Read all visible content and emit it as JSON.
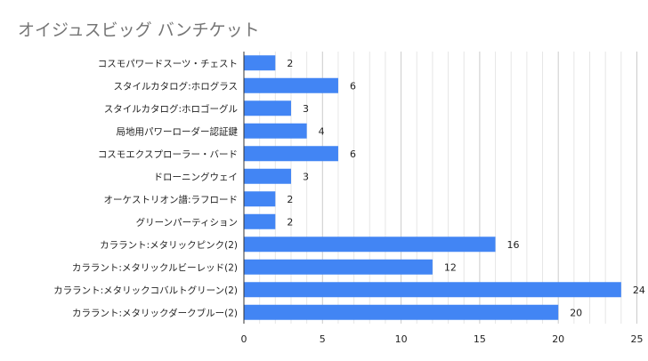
{
  "chart_data": {
    "type": "bar",
    "orientation": "horizontal",
    "title": "オイジュスビッグ バンチケット",
    "xlabel": "",
    "ylabel": "",
    "categories": [
      "コスモパワードスーツ・チェスト",
      "スタイルカタログ:ホログラス",
      "スタイルカタログ:ホロゴーグル",
      "局地用パワーローダー認証鍵",
      "コスモエクスプローラー・バード",
      "ドローニングウェイ",
      "オーケストリオン譜:ラフロード",
      "グリーンパーティション",
      "カララント:メタリックピンク(2)",
      "カララント:メタリックルビーレッド(2)",
      "カララント:メタリックコバルトグリーン(2)",
      "カララント:メタリックダークブルー(2)"
    ],
    "values": [
      2,
      6,
      3,
      4,
      6,
      3,
      2,
      2,
      16,
      12,
      24,
      20
    ],
    "xlim": [
      0,
      25
    ],
    "xticks": [
      0,
      5,
      10,
      15,
      20,
      25
    ],
    "grid": true,
    "data_labels": true,
    "bar_color": "#4285f4"
  }
}
